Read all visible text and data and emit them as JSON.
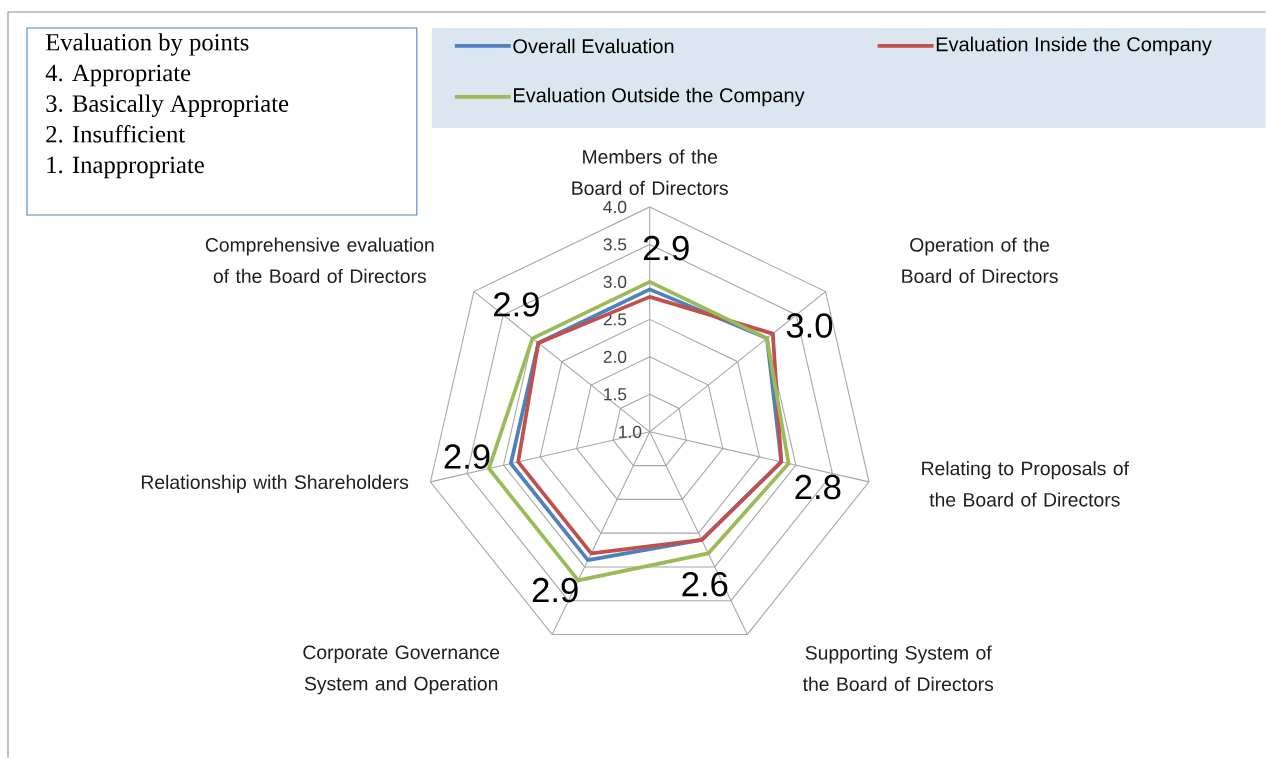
{
  "chart_data": {
    "type": "radar",
    "categories": [
      "Members of the Board of Directors",
      "Operation of the Board of Directors",
      "Relating to Proposals of the Board of Directors",
      "Supporting System of the Board of Directors",
      "Corporate Governance System and Operation",
      "Relationship with Shareholders",
      "Comprehensive evaluation of the Board of Directors"
    ],
    "ylim": [
      1,
      4
    ],
    "yticks": [
      {
        "value": 1,
        "label": "1.0"
      },
      {
        "value": 1.5,
        "label": "1.5"
      },
      {
        "value": 2,
        "label": "2.0"
      },
      {
        "value": 2.5,
        "label": "2.5"
      },
      {
        "value": 3,
        "label": "3.0"
      },
      {
        "value": 3.5,
        "label": "3.5"
      },
      {
        "value": 4,
        "label": "4.0"
      }
    ],
    "series": [
      {
        "name": "Overall Evaluation",
        "color": "#4f81bd",
        "values": [
          2.9,
          3.0,
          2.8,
          2.6,
          2.9,
          2.9,
          2.9
        ],
        "value_labels": [
          "2.9",
          "3.0",
          "2.8",
          "2.6",
          "2.9",
          "2.9",
          "2.9"
        ]
      },
      {
        "name": "Evaluation Inside the Company",
        "color": "#c0504d",
        "values": [
          2.8,
          3.1,
          2.8,
          2.6,
          2.8,
          2.8,
          2.9
        ]
      },
      {
        "name": "Evaluation Outside the Company",
        "color": "#9bbb59",
        "values": [
          3.0,
          3.0,
          2.9,
          2.8,
          3.2,
          3.2,
          3.0
        ]
      }
    ],
    "grid": true,
    "legend": "top right",
    "annotations": [
      "Evaluation by points",
      "4. Appropriate",
      "3. Basically Appropriate",
      "2. Insufficient",
      "1. Inappropriate"
    ]
  }
}
